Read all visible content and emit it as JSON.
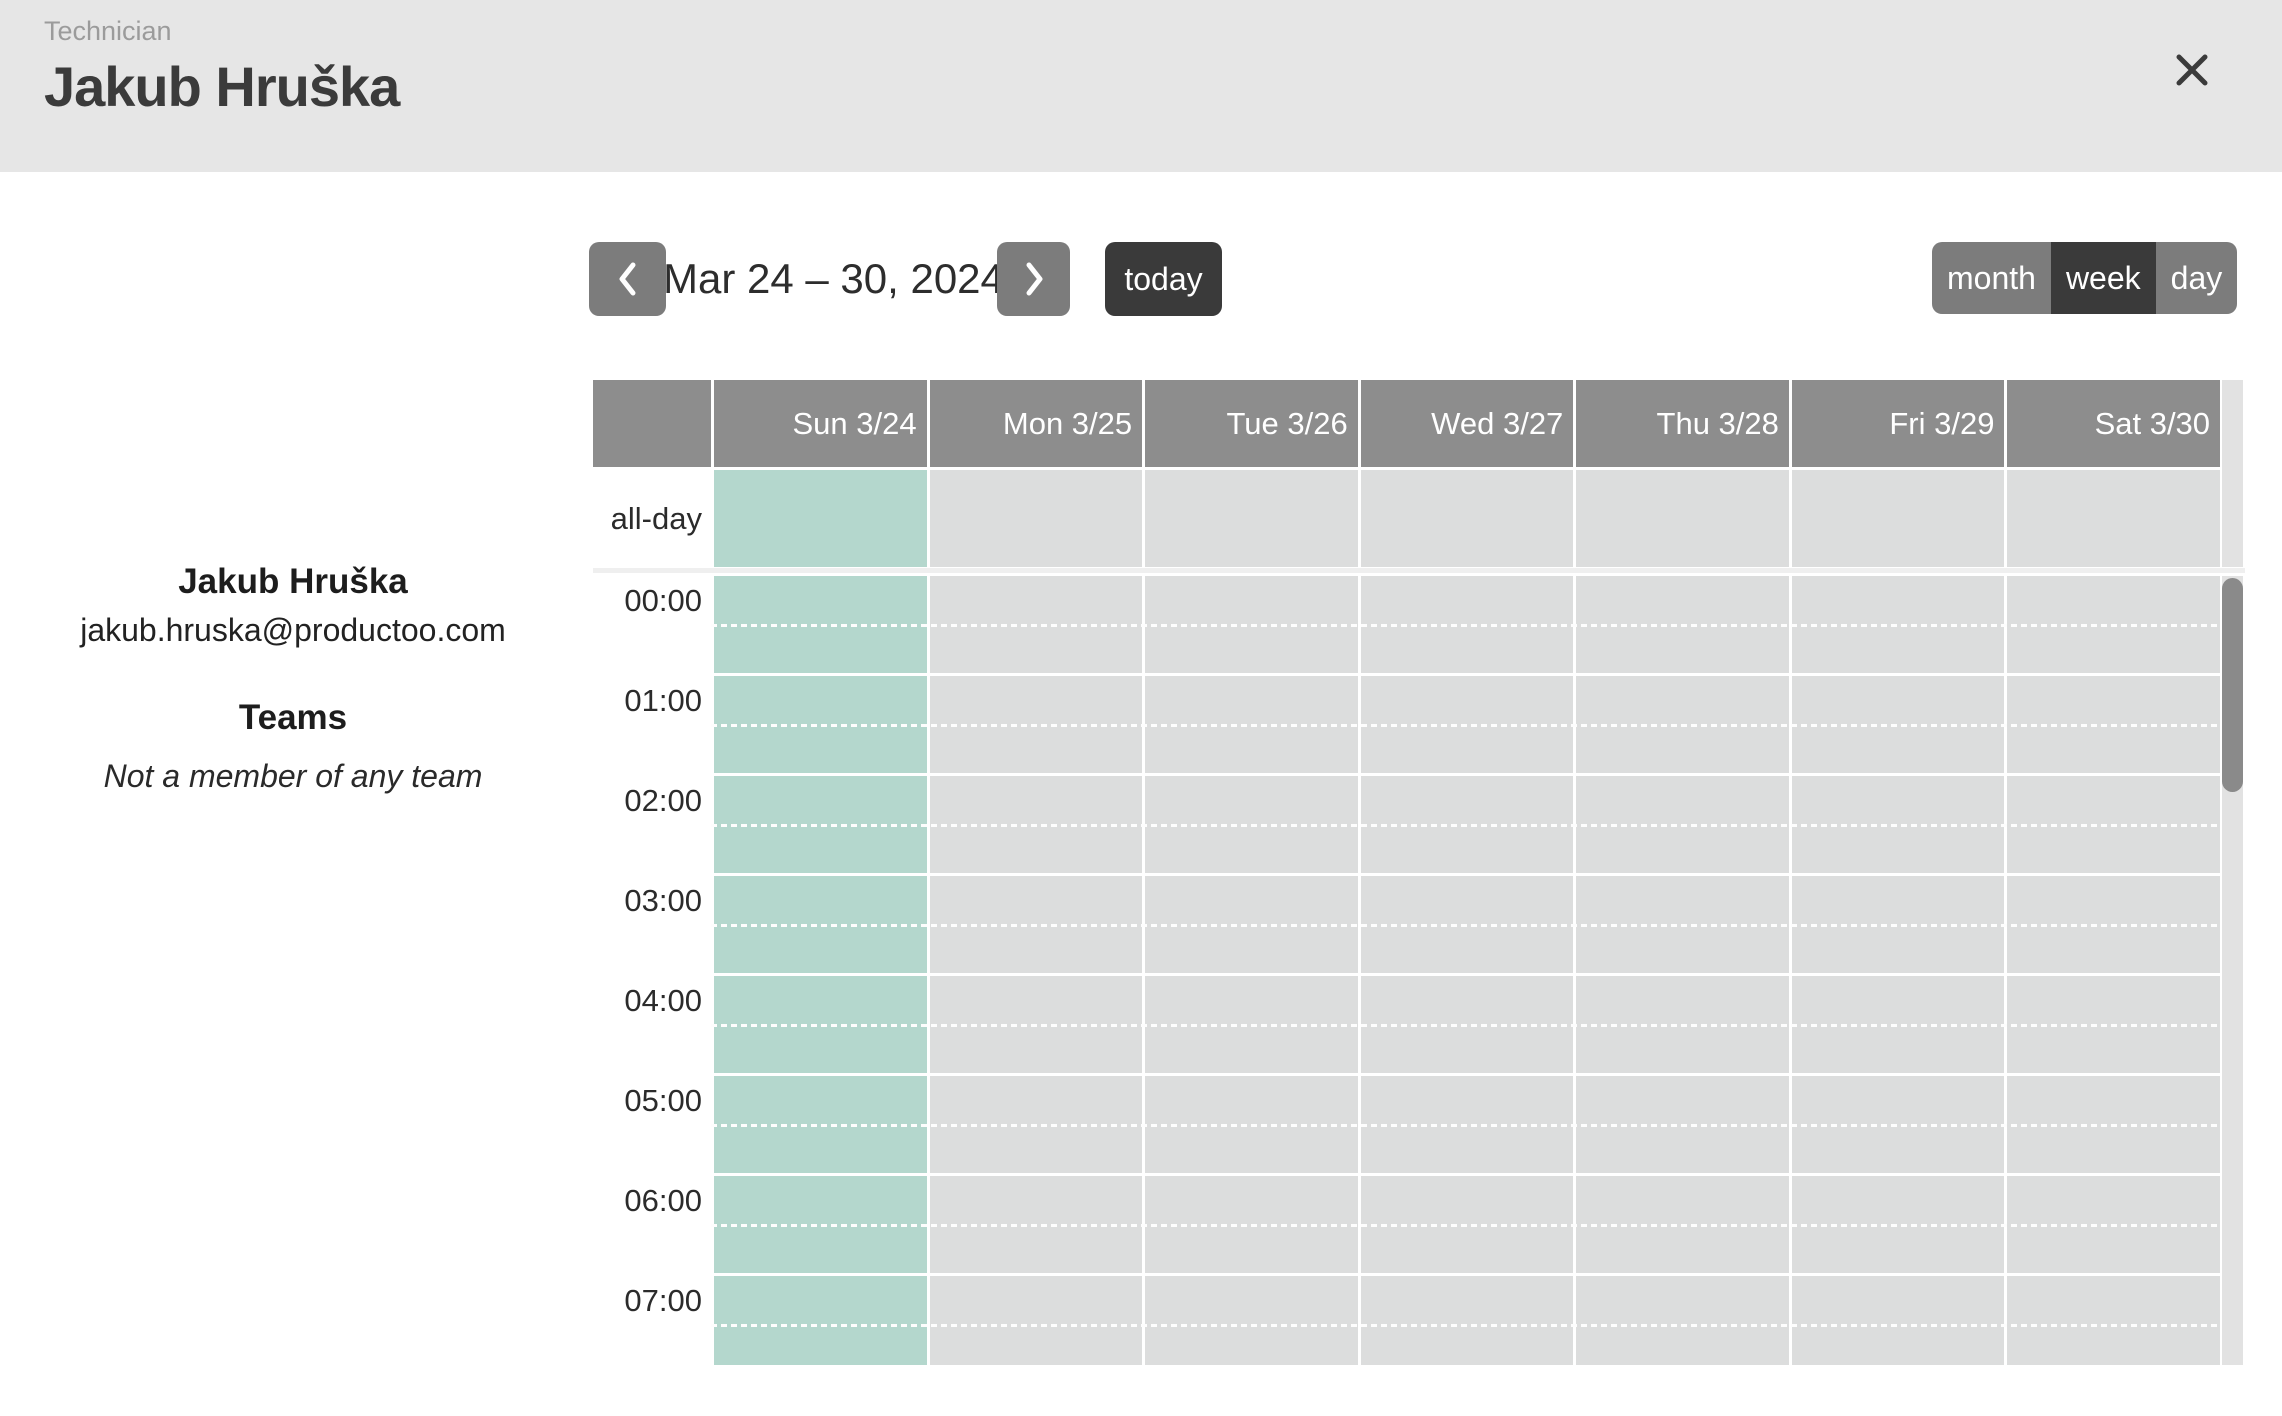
{
  "modal": {
    "subtitle": "Technician",
    "title": "Jakub Hruška"
  },
  "profile": {
    "name": "Jakub Hruška",
    "email": "jakub.hruska@productoo.com",
    "teams_heading": "Teams",
    "teams_note": "Not a member of any team"
  },
  "toolbar": {
    "title": "Mar 24 – 30, 2024",
    "today_label": "today",
    "prev_icon": "chevron-left",
    "next_icon": "chevron-right",
    "views": [
      {
        "id": "month",
        "label": "month",
        "active": false
      },
      {
        "id": "week",
        "label": "week",
        "active": true
      },
      {
        "id": "day",
        "label": "day",
        "active": false
      }
    ]
  },
  "calendar": {
    "all_day_label": "all-day",
    "days": [
      {
        "label": "Sun 3/24",
        "highlighted": true
      },
      {
        "label": "Mon 3/25",
        "highlighted": false
      },
      {
        "label": "Tue 3/26",
        "highlighted": false
      },
      {
        "label": "Wed 3/27",
        "highlighted": false
      },
      {
        "label": "Thu 3/28",
        "highlighted": false
      },
      {
        "label": "Fri 3/29",
        "highlighted": false
      },
      {
        "label": "Sat 3/30",
        "highlighted": false
      }
    ],
    "hours": [
      "00:00",
      "01:00",
      "02:00",
      "03:00",
      "04:00",
      "05:00",
      "06:00",
      "07:00"
    ],
    "colors": {
      "modal_header_bg": "#e6e6e6",
      "day_header_bg": "#8d8d8d",
      "cell_bg": "#dcdddd",
      "today_column_bg": "#b4d7cd",
      "button_gray": "#7c7c7c",
      "button_dark": "#3a3a3a",
      "scroll_track": "#e2e2e2",
      "scroll_thumb": "#8a8a8a"
    }
  }
}
